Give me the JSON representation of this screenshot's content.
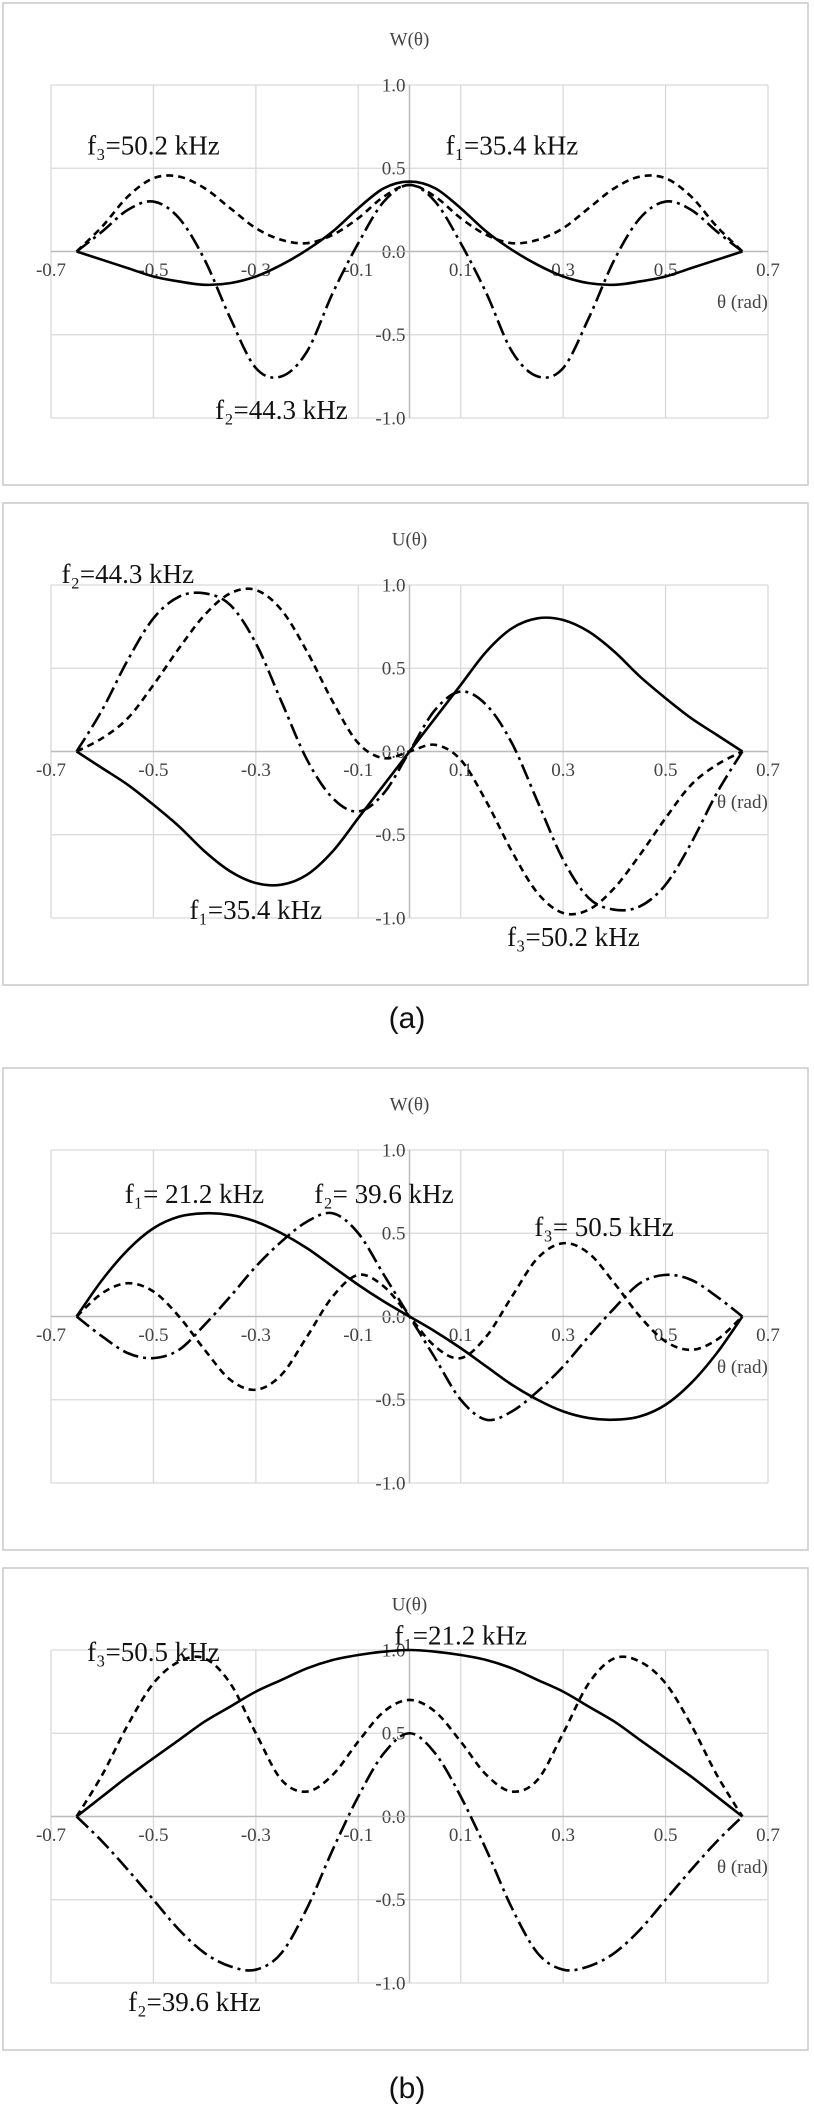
{
  "captions": [
    "(a)",
    "(b)"
  ],
  "chart_data": [
    {
      "type": "line",
      "y_label": "W(θ)",
      "x_label": "θ (rad)",
      "x": [
        -0.65,
        -0.6,
        -0.55,
        -0.5,
        -0.45,
        -0.4,
        -0.35,
        -0.3,
        -0.25,
        -0.2,
        -0.15,
        -0.1,
        -0.05,
        0,
        0.05,
        0.1,
        0.15,
        0.2,
        0.25,
        0.3,
        0.35,
        0.4,
        0.45,
        0.5,
        0.55,
        0.6,
        0.65
      ],
      "xlim": [
        -0.7,
        0.7
      ],
      "xticks": [
        -0.7,
        -0.5,
        -0.3,
        -0.1,
        0.1,
        0.3,
        0.5,
        0.7
      ],
      "ylim": [
        -1,
        1
      ],
      "yticks": [
        {
          "value": 1,
          "label": "1.0"
        },
        0.5,
        {
          "value": 0,
          "label": "0.0"
        },
        -0.5,
        {
          "value": -1,
          "label": "-1.0"
        }
      ],
      "grid": true,
      "series": [
        {
          "name": "f₁=35.4 kHz",
          "color": "#000000",
          "dash": "solid",
          "values": [
            0,
            -0.05,
            -0.1,
            -0.15,
            -0.18,
            -0.2,
            -0.19,
            -0.15,
            -0.08,
            0.01,
            0.12,
            0.26,
            0.38,
            0.42,
            0.38,
            0.26,
            0.12,
            0.01,
            -0.08,
            -0.15,
            -0.19,
            -0.2,
            -0.18,
            -0.15,
            -0.1,
            -0.05,
            0
          ]
        },
        {
          "name": "f₂=44.3 kHz",
          "color": "#000000",
          "dash": "dashdot",
          "values": [
            0,
            0.12,
            0.25,
            0.3,
            0.2,
            -0.05,
            -0.4,
            -0.7,
            -0.75,
            -0.6,
            -0.25,
            0.05,
            0.3,
            0.4,
            0.3,
            0.05,
            -0.25,
            -0.6,
            -0.75,
            -0.7,
            -0.4,
            -0.05,
            0.2,
            0.3,
            0.25,
            0.12,
            0
          ]
        },
        {
          "name": "f₃=50.2 kHz",
          "color": "#000000",
          "dash": "dashed",
          "values": [
            0,
            0.15,
            0.33,
            0.44,
            0.45,
            0.38,
            0.26,
            0.14,
            0.07,
            0.05,
            0.1,
            0.2,
            0.33,
            0.4,
            0.33,
            0.2,
            0.1,
            0.05,
            0.07,
            0.14,
            0.26,
            0.38,
            0.45,
            0.44,
            0.33,
            0.15,
            0
          ]
        }
      ]
    },
    {
      "type": "line",
      "y_label": "U(θ)",
      "x_label": "θ (rad)",
      "x": [
        -0.65,
        -0.6,
        -0.55,
        -0.5,
        -0.45,
        -0.4,
        -0.35,
        -0.3,
        -0.25,
        -0.2,
        -0.15,
        -0.1,
        -0.05,
        0,
        0.05,
        0.1,
        0.15,
        0.2,
        0.25,
        0.3,
        0.35,
        0.4,
        0.45,
        0.5,
        0.55,
        0.6,
        0.65
      ],
      "xlim": [
        -0.7,
        0.7
      ],
      "xticks": [
        -0.7,
        -0.5,
        -0.3,
        -0.1,
        0.1,
        0.3,
        0.5,
        0.7
      ],
      "ylim": [
        -1,
        1
      ],
      "yticks": [
        {
          "value": 1,
          "label": "1.0"
        },
        0.5,
        {
          "value": 0,
          "label": "0.0"
        },
        -0.5,
        {
          "value": -1,
          "label": "-1.0"
        }
      ],
      "grid": true,
      "series": [
        {
          "name": "f₁=35.4 kHz",
          "color": "#000000",
          "dash": "solid",
          "values": [
            0,
            -0.1,
            -0.2,
            -0.32,
            -0.45,
            -0.6,
            -0.72,
            -0.79,
            -0.8,
            -0.74,
            -0.6,
            -0.4,
            -0.2,
            0,
            0.2,
            0.4,
            0.6,
            0.74,
            0.8,
            0.79,
            0.72,
            0.6,
            0.45,
            0.32,
            0.2,
            0.1,
            0
          ]
        },
        {
          "name": "f₂=44.3 kHz",
          "color": "#000000",
          "dash": "dashdot",
          "values": [
            0,
            0.25,
            0.55,
            0.8,
            0.93,
            0.95,
            0.88,
            0.65,
            0.3,
            -0.05,
            -0.28,
            -0.36,
            -0.25,
            0,
            0.25,
            0.36,
            0.28,
            0.05,
            -0.3,
            -0.65,
            -0.88,
            -0.95,
            -0.93,
            -0.8,
            -0.55,
            -0.25,
            0
          ]
        },
        {
          "name": "f₃=50.2 kHz",
          "color": "#000000",
          "dash": "dashed",
          "values": [
            0,
            0.08,
            0.2,
            0.4,
            0.62,
            0.82,
            0.95,
            0.97,
            0.85,
            0.6,
            0.3,
            0.05,
            -0.04,
            0,
            0.04,
            -0.05,
            -0.3,
            -0.6,
            -0.85,
            -0.97,
            -0.95,
            -0.82,
            -0.62,
            -0.4,
            -0.2,
            -0.08,
            0
          ]
        }
      ]
    },
    {
      "type": "line",
      "y_label": "W(θ)",
      "x_label": "θ (rad)",
      "x": [
        -0.65,
        -0.6,
        -0.55,
        -0.5,
        -0.45,
        -0.4,
        -0.35,
        -0.3,
        -0.25,
        -0.2,
        -0.15,
        -0.1,
        -0.05,
        0,
        0.05,
        0.1,
        0.15,
        0.2,
        0.25,
        0.3,
        0.35,
        0.4,
        0.45,
        0.5,
        0.55,
        0.6,
        0.65
      ],
      "xlim": [
        -0.7,
        0.7
      ],
      "xticks": [
        -0.7,
        -0.5,
        -0.3,
        -0.1,
        0.1,
        0.3,
        0.5,
        0.7
      ],
      "ylim": [
        -1,
        1
      ],
      "yticks": [
        {
          "value": 1,
          "label": "1.0"
        },
        0.5,
        {
          "value": 0,
          "label": "0.0"
        },
        -0.5,
        {
          "value": -1,
          "label": "-1.0"
        }
      ],
      "grid": true,
      "series": [
        {
          "name": "f₁= 21.2 kHz",
          "color": "#000000",
          "dash": "solid",
          "values": [
            0,
            0.22,
            0.4,
            0.53,
            0.6,
            0.62,
            0.61,
            0.57,
            0.5,
            0.41,
            0.3,
            0.19,
            0.09,
            0,
            -0.09,
            -0.19,
            -0.3,
            -0.41,
            -0.5,
            -0.57,
            -0.61,
            -0.62,
            -0.6,
            -0.53,
            -0.4,
            -0.22,
            0
          ]
        },
        {
          "name": "f₂= 39.6 kHz",
          "color": "#000000",
          "dash": "dashdot",
          "values": [
            0,
            -0.12,
            -0.22,
            -0.25,
            -0.2,
            -0.05,
            0.12,
            0.3,
            0.45,
            0.57,
            0.62,
            0.5,
            0.25,
            0,
            -0.25,
            -0.5,
            -0.62,
            -0.57,
            -0.45,
            -0.3,
            -0.12,
            0.05,
            0.2,
            0.25,
            0.22,
            0.12,
            0
          ]
        },
        {
          "name": "f₃= 50.5 kHz",
          "color": "#000000",
          "dash": "dashed",
          "values": [
            0,
            0.14,
            0.2,
            0.15,
            0,
            -0.2,
            -0.38,
            -0.44,
            -0.35,
            -0.12,
            0.12,
            0.25,
            0.18,
            0,
            -0.18,
            -0.25,
            -0.12,
            0.12,
            0.35,
            0.44,
            0.38,
            0.2,
            0,
            -0.15,
            -0.2,
            -0.14,
            0
          ]
        }
      ]
    },
    {
      "type": "line",
      "y_label": "U(θ)",
      "x_label": "θ (rad)",
      "x": [
        -0.65,
        -0.6,
        -0.55,
        -0.5,
        -0.45,
        -0.4,
        -0.35,
        -0.3,
        -0.25,
        -0.2,
        -0.15,
        -0.1,
        -0.05,
        0,
        0.05,
        0.1,
        0.15,
        0.2,
        0.25,
        0.3,
        0.35,
        0.4,
        0.45,
        0.5,
        0.55,
        0.6,
        0.65
      ],
      "xlim": [
        -0.7,
        0.7
      ],
      "xticks": [
        -0.7,
        -0.5,
        -0.3,
        -0.1,
        0.1,
        0.3,
        0.5,
        0.7
      ],
      "ylim": [
        -1,
        1
      ],
      "yticks": [
        {
          "value": 1,
          "label": "1.0"
        },
        0.5,
        {
          "value": 0,
          "label": "0.0"
        },
        -0.5,
        {
          "value": -1,
          "label": "-1.0"
        }
      ],
      "grid": true,
      "series": [
        {
          "name": "f₁=21.2 kHz",
          "color": "#000000",
          "dash": "solid",
          "values": [
            0,
            0.12,
            0.24,
            0.35,
            0.46,
            0.57,
            0.66,
            0.75,
            0.82,
            0.89,
            0.94,
            0.97,
            0.99,
            1,
            0.99,
            0.97,
            0.94,
            0.89,
            0.82,
            0.75,
            0.66,
            0.57,
            0.46,
            0.35,
            0.24,
            0.12,
            0
          ]
        },
        {
          "name": "f₂=39.6 kHz",
          "color": "#000000",
          "dash": "dashdot",
          "values": [
            0,
            -0.15,
            -0.32,
            -0.5,
            -0.68,
            -0.82,
            -0.9,
            -0.92,
            -0.82,
            -0.55,
            -0.2,
            0.12,
            0.38,
            0.5,
            0.38,
            0.12,
            -0.2,
            -0.55,
            -0.82,
            -0.92,
            -0.9,
            -0.82,
            -0.68,
            -0.5,
            -0.32,
            -0.15,
            0
          ]
        },
        {
          "name": "f₃=50.5 kHz",
          "color": "#000000",
          "dash": "dashed",
          "values": [
            0,
            0.25,
            0.55,
            0.8,
            0.93,
            0.95,
            0.8,
            0.5,
            0.22,
            0.15,
            0.25,
            0.45,
            0.63,
            0.7,
            0.63,
            0.45,
            0.25,
            0.15,
            0.22,
            0.5,
            0.8,
            0.95,
            0.93,
            0.8,
            0.55,
            0.25,
            0
          ]
        }
      ]
    }
  ]
}
